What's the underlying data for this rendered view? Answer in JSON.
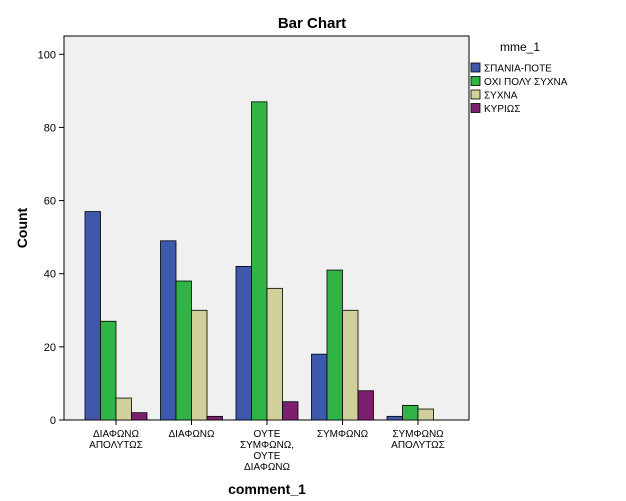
{
  "chart_data": {
    "type": "bar",
    "title": "Bar Chart",
    "xlabel": "comment_1",
    "ylabel": "Count",
    "ylim": [
      0,
      105
    ],
    "yticks": [
      0,
      20,
      40,
      60,
      80,
      100
    ],
    "grid": false,
    "legend_title": "mme_1",
    "legend_position": "top-right",
    "categories": [
      [
        "ΔΙΑΦΩΝΩ",
        "ΑΠΟΛΥΤΩΣ"
      ],
      [
        "ΔΙΑΦΩΝΩ"
      ],
      [
        "ΟΥΤΕ",
        "ΣΥΜΦΩΝΩ,",
        "ΟΥΤΕ",
        "ΔΙΑΦΩΝΩ"
      ],
      [
        "ΣΥΜΦΩΝΩ"
      ],
      [
        "ΣΥΜΦΩΝΩ",
        "ΑΠΟΛΥΤΩΣ"
      ]
    ],
    "series": [
      {
        "name": "ΣΠΑΝΙΑ-ΠΟΤΕ",
        "color": "#3e58ac",
        "values": [
          57,
          49,
          42,
          18,
          1
        ]
      },
      {
        "name": "ΟΧΙ ΠΟΛΥ ΣΥΧΝΑ",
        "color": "#2fb445",
        "values": [
          27,
          38,
          87,
          41,
          4
        ]
      },
      {
        "name": "ΣΥΧΝΑ",
        "color": "#d2d09a",
        "values": [
          6,
          30,
          36,
          30,
          3
        ]
      },
      {
        "name": "ΚΥΡΙΩΣ",
        "color": "#7b1f6e",
        "values": [
          2,
          1,
          5,
          8,
          0
        ]
      }
    ],
    "plot_background": "#f0f0f0"
  }
}
